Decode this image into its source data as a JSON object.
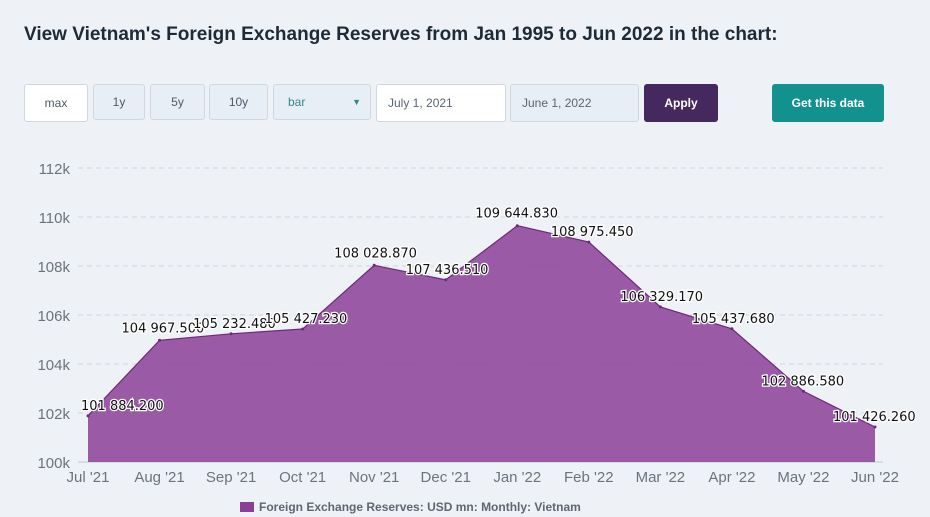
{
  "page": {
    "title": "View Vietnam's Foreign Exchange Reserves from Jan 1995 to Jun 2022 in the chart:"
  },
  "controls": {
    "range_buttons": [
      "max",
      "1y",
      "5y",
      "10y"
    ],
    "chart_type_selected": "bar",
    "start_date": "July 1, 2021",
    "end_date": "June 1, 2022",
    "apply_label": "Apply",
    "get_data_label": "Get this data"
  },
  "colors": {
    "area_fill": "#8b3f96",
    "area_stroke": "#6e2a7a",
    "apply_bg": "#45285e",
    "get_data_bg": "#13918e"
  },
  "chart_data": {
    "type": "area",
    "categories": [
      "Jul '21",
      "Aug '21",
      "Sep '21",
      "Oct '21",
      "Nov '21",
      "Dec '21",
      "Jan '22",
      "Feb '22",
      "Mar '22",
      "Apr '22",
      "May '22",
      "Jun '22"
    ],
    "series": [
      {
        "name": "Foreign Exchange Reserves: USD mn: Monthly: Vietnam",
        "values": [
          101884.2,
          104967.5,
          105232.48,
          105427.23,
          108028.87,
          107436.51,
          109644.83,
          108975.45,
          106329.17,
          105437.68,
          102886.58,
          101426.26
        ]
      }
    ],
    "data_labels": [
      "101 884.200",
      "104 967.500",
      "105 232.480",
      "105 427.230",
      "108 028.870",
      "107 436.510",
      "109 644.830",
      "108 975.450",
      "106 329.170",
      "105 437.680",
      "102 886.580",
      "101 426.260"
    ],
    "y_ticks": [
      100000,
      102000,
      104000,
      106000,
      108000,
      110000,
      112000
    ],
    "y_tick_labels": [
      "100k",
      "102k",
      "104k",
      "106k",
      "108k",
      "110k",
      "112k"
    ],
    "ylim": [
      100000,
      112000
    ],
    "grid": true,
    "legend": "bottom-center",
    "title": "",
    "xlabel": "",
    "ylabel": ""
  }
}
